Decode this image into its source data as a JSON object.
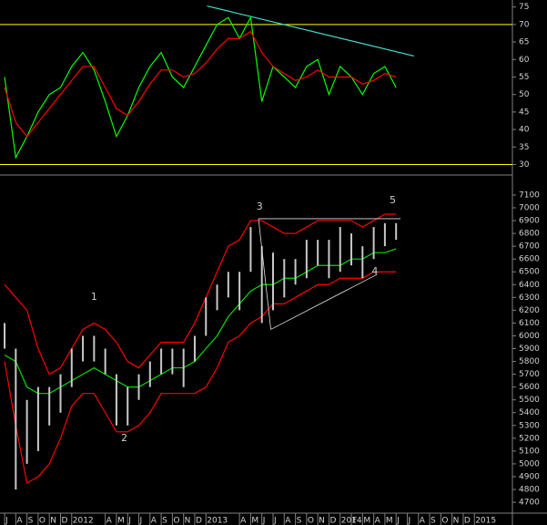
{
  "chart_data": [
    {
      "type": "line",
      "xlim": [
        -0.41,
        45.4
      ],
      "ylim": [
        27,
        77
      ],
      "yticks": [
        30,
        35,
        40,
        45,
        50,
        55,
        60,
        65,
        70,
        75
      ],
      "x": [
        0,
        1,
        2,
        3,
        4,
        5,
        6,
        7,
        8,
        9,
        10,
        11,
        12,
        13,
        14,
        15,
        16,
        17,
        18,
        19,
        20,
        21,
        22,
        23,
        24,
        25,
        26,
        27,
        28,
        29,
        30,
        31,
        32,
        33,
        34,
        35
      ],
      "series": [
        {
          "color": "#00ff00",
          "values": [
            55,
            32,
            38,
            45,
            50,
            52,
            58,
            62,
            57,
            48,
            38,
            44,
            52,
            58,
            62,
            55,
            52,
            58,
            64,
            70,
            72,
            66,
            72,
            48,
            58,
            55,
            52,
            58,
            60,
            50,
            58,
            55,
            50,
            56,
            58,
            52
          ]
        },
        {
          "color": "#ff0000",
          "values": [
            52,
            42,
            38,
            42,
            46,
            50,
            54,
            58,
            58,
            52,
            46,
            44,
            48,
            53,
            57,
            57,
            55,
            56,
            59,
            63,
            66,
            66,
            68,
            62,
            58,
            56,
            54,
            55,
            57,
            55,
            55,
            55,
            53,
            54,
            56,
            55
          ]
        }
      ],
      "hlines": [
        70,
        30
      ],
      "hline_color": "#ffff00",
      "trendline": {
        "x": [
          18.1,
          36.6
        ],
        "values": [
          75.3,
          61
        ],
        "color": "#40e0d0"
      }
    },
    {
      "type": "hilo",
      "xlim": [
        -0.41,
        45.4
      ],
      "ylim": [
        4615,
        7235
      ],
      "yticks": [
        4700,
        4800,
        4900,
        5000,
        5100,
        5200,
        5300,
        5400,
        5500,
        5600,
        5700,
        5800,
        5900,
        6000,
        6100,
        6200,
        6300,
        6400,
        6500,
        6600,
        6700,
        6800,
        6900,
        7000,
        7100
      ],
      "x": [
        0,
        1,
        2,
        3,
        4,
        5,
        6,
        7,
        8,
        9,
        10,
        11,
        12,
        13,
        14,
        15,
        16,
        17,
        18,
        19,
        20,
        21,
        22,
        23,
        24,
        25,
        26,
        27,
        28,
        29,
        30,
        31,
        32,
        33,
        34,
        35
      ],
      "high": [
        6100,
        5900,
        5500,
        5600,
        5600,
        5700,
        5900,
        6000,
        6000,
        5900,
        5700,
        5600,
        5700,
        5800,
        5900,
        5900,
        5900,
        6000,
        6300,
        6400,
        6500,
        6500,
        6850,
        6700,
        6650,
        6600,
        6600,
        6750,
        6750,
        6750,
        6850,
        6800,
        6700,
        6850,
        6880,
        6880
      ],
      "low": [
        5900,
        4800,
        5000,
        5100,
        5300,
        5400,
        5600,
        5800,
        5800,
        5700,
        5300,
        5300,
        5500,
        5600,
        5700,
        5700,
        5600,
        5800,
        6000,
        6200,
        6300,
        6200,
        6500,
        6100,
        6200,
        6300,
        6400,
        6450,
        6550,
        6450,
        6500,
        6550,
        6450,
        6600,
        6700,
        6750
      ],
      "bar_color": "#c8c8c8",
      "series": [
        {
          "color": "#ff0000",
          "values": [
            6400,
            6300,
            6200,
            5900,
            5700,
            5750,
            5900,
            6050,
            6100,
            6050,
            5950,
            5800,
            5750,
            5850,
            5950,
            5950,
            5950,
            6100,
            6300,
            6500,
            6700,
            6750,
            6900,
            6900,
            6850,
            6800,
            6800,
            6850,
            6900,
            6900,
            6900,
            6900,
            6850,
            6900,
            6950,
            6950
          ]
        },
        {
          "color": "#ff0000",
          "values": [
            5800,
            5300,
            4850,
            4900,
            5000,
            5200,
            5450,
            5550,
            5550,
            5400,
            5250,
            5250,
            5300,
            5400,
            5550,
            5550,
            5550,
            5550,
            5600,
            5750,
            5950,
            6000,
            6100,
            6150,
            6250,
            6250,
            6300,
            6350,
            6400,
            6400,
            6450,
            6450,
            6450,
            6500,
            6500,
            6500
          ]
        },
        {
          "color": "#00dd00",
          "values": [
            5850,
            5800,
            5600,
            5550,
            5550,
            5600,
            5650,
            5700,
            5750,
            5700,
            5650,
            5600,
            5600,
            5650,
            5700,
            5750,
            5750,
            5800,
            5900,
            6000,
            6150,
            6250,
            6350,
            6400,
            6400,
            6450,
            6450,
            6500,
            6550,
            6550,
            6550,
            6600,
            6600,
            6650,
            6650,
            6680
          ]
        }
      ],
      "trendlines": [
        {
          "x": [
            22.7,
            35.4
          ],
          "values": [
            6915,
            6915
          ]
        },
        {
          "x": [
            23.8,
            33.3
          ],
          "values": [
            6050,
            6480
          ]
        },
        {
          "x": [
            22.7,
            23.8
          ],
          "values": [
            6915,
            6050
          ]
        }
      ],
      "trendline_color": "#e0e0e0",
      "annotations": [
        {
          "text": "1",
          "x": 8,
          "y": 6302
        },
        {
          "text": "2",
          "x": 10.7,
          "y": 5198
        },
        {
          "text": "3",
          "x": 22.8,
          "y": 7007
        },
        {
          "text": "4",
          "x": 33.1,
          "y": 6502
        },
        {
          "text": "5",
          "x": 34.7,
          "y": 7057
        }
      ],
      "annotation_color": "#ffff00",
      "xticks": [
        {
          "value": 0,
          "label": "J"
        },
        {
          "value": 1,
          "label": "A"
        },
        {
          "value": 2,
          "label": "S"
        },
        {
          "value": 3,
          "label": "O"
        },
        {
          "value": 4,
          "label": "N"
        },
        {
          "value": 5,
          "label": "D"
        },
        {
          "value": 6,
          "label": "2012"
        },
        {
          "value": 9,
          "label": "A"
        },
        {
          "value": 10,
          "label": "M"
        },
        {
          "value": 11,
          "label": "J"
        },
        {
          "value": 12,
          "label": "J"
        },
        {
          "value": 13,
          "label": "A"
        },
        {
          "value": 14,
          "label": "S"
        },
        {
          "value": 15,
          "label": "O"
        },
        {
          "value": 16,
          "label": "N"
        },
        {
          "value": 17,
          "label": "D"
        },
        {
          "value": 18,
          "label": "2013"
        },
        {
          "value": 21,
          "label": "A"
        },
        {
          "value": 22,
          "label": "M"
        },
        {
          "value": 23,
          "label": "J"
        },
        {
          "value": 24,
          "label": "J"
        },
        {
          "value": 25,
          "label": "A"
        },
        {
          "value": 26,
          "label": "S"
        },
        {
          "value": 27,
          "label": "O"
        },
        {
          "value": 28,
          "label": "N"
        },
        {
          "value": 29,
          "label": "D"
        },
        {
          "value": 30,
          "label": "2014"
        },
        {
          "value": 31,
          "label": "F"
        },
        {
          "value": 32,
          "label": "M"
        },
        {
          "value": 33,
          "label": "A"
        },
        {
          "value": 34,
          "label": "M"
        },
        {
          "value": 35,
          "label": "J"
        },
        {
          "value": 36,
          "label": "J"
        },
        {
          "value": 37,
          "label": "A"
        },
        {
          "value": 38,
          "label": "S"
        },
        {
          "value": 39,
          "label": "O"
        },
        {
          "value": 40,
          "label": "N"
        },
        {
          "value": 41,
          "label": "D"
        },
        {
          "value": 42,
          "label": "2015"
        }
      ]
    }
  ]
}
